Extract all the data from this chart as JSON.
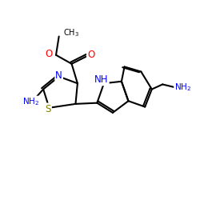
{
  "background": "#ffffff",
  "bond_color": "#000000",
  "bond_width": 1.5,
  "atom_colors": {
    "N": "#0000ff",
    "O": "#ff0000",
    "S": "#808000",
    "C": "#000000"
  },
  "font_size": 7,
  "fig_size": [
    2.5,
    2.5
  ],
  "dpi": 100
}
